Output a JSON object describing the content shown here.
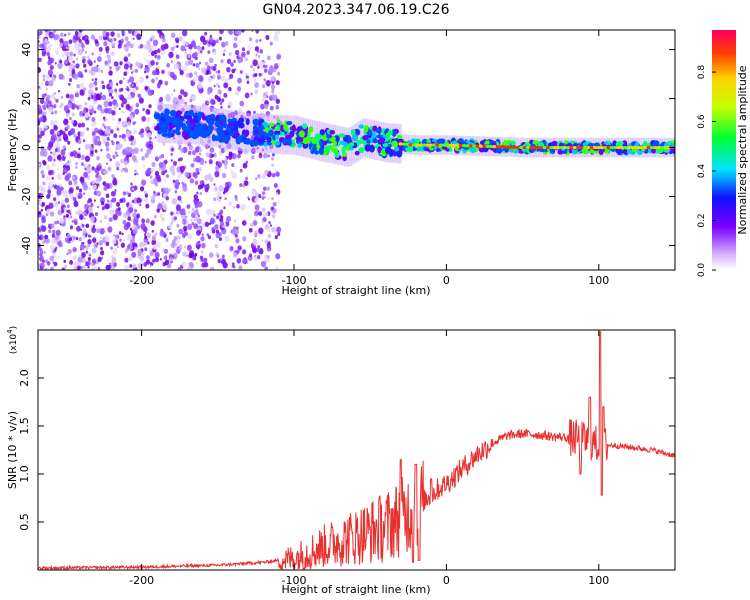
{
  "title": "GN04.2023.347.06.19.C26",
  "chart_data": [
    {
      "type": "heatmap",
      "xlabel": "Height of straight line (km)",
      "ylabel": "Frequency (Hz)",
      "xlim": [
        -268,
        150
      ],
      "ylim": [
        -50,
        48
      ],
      "x_ticks": [
        -200,
        -100,
        0,
        100
      ],
      "y_ticks": [
        -40,
        -20,
        0,
        20,
        40
      ],
      "colorbar": {
        "label": "Normalized spectral amplitude",
        "range": [
          0.0,
          0.97
        ],
        "ticks": [
          0.0,
          0.2,
          0.4,
          0.6,
          0.8
        ]
      },
      "features": {
        "noise_region_x": [
          -268,
          -110
        ],
        "signal_ridge": [
          [
            -190,
            10
          ],
          [
            -160,
            9
          ],
          [
            -130,
            6
          ],
          [
            -100,
            5
          ],
          [
            -80,
            2
          ],
          [
            -65,
            0
          ],
          [
            -55,
            4
          ],
          [
            -40,
            2
          ],
          [
            -20,
            1
          ],
          [
            0,
            1
          ],
          [
            50,
            0
          ],
          [
            100,
            0
          ],
          [
            150,
            0
          ]
        ]
      }
    },
    {
      "type": "line",
      "xlabel": "Height of straight line (km)",
      "ylabel": "SNR (10 * v/v)",
      "y_scale_label": "(x10",
      "y_scale_exp": "4",
      "xlim": [
        -268,
        150
      ],
      "ylim": [
        0,
        2.5
      ],
      "x_ticks": [
        -200,
        -100,
        0,
        100
      ],
      "y_ticks": [
        0.5,
        1.0,
        1.5,
        2.0
      ],
      "color": "#e8302f",
      "envelope": [
        [
          -268,
          0.02
        ],
        [
          -200,
          0.03
        ],
        [
          -150,
          0.05
        ],
        [
          -120,
          0.08
        ],
        [
          -100,
          0.12
        ],
        [
          -80,
          0.25
        ],
        [
          -60,
          0.35
        ],
        [
          -40,
          0.45
        ],
        [
          -25,
          0.6
        ],
        [
          -15,
          0.72
        ],
        [
          -5,
          0.85
        ],
        [
          0,
          0.9
        ],
        [
          10,
          1.05
        ],
        [
          20,
          1.2
        ],
        [
          30,
          1.32
        ],
        [
          40,
          1.4
        ],
        [
          50,
          1.42
        ],
        [
          60,
          1.41
        ],
        [
          70,
          1.39
        ],
        [
          80,
          1.38
        ],
        [
          85,
          1.37
        ],
        [
          90,
          1.35
        ],
        [
          95,
          1.33
        ],
        [
          100,
          1.3
        ],
        [
          110,
          1.3
        ],
        [
          120,
          1.28
        ],
        [
          135,
          1.25
        ],
        [
          150,
          1.19
        ]
      ],
      "spikes": [
        [
          -30,
          1.15
        ],
        [
          -20,
          1.1
        ],
        [
          -10,
          0.95
        ],
        [
          88,
          1.55
        ],
        [
          94,
          1.8
        ],
        [
          101,
          2.48
        ],
        [
          103,
          1.7
        ]
      ],
      "dips": [
        [
          -22,
          0.08
        ],
        [
          -18,
          0.1
        ],
        [
          88,
          1.0
        ],
        [
          102,
          0.78
        ]
      ]
    }
  ]
}
